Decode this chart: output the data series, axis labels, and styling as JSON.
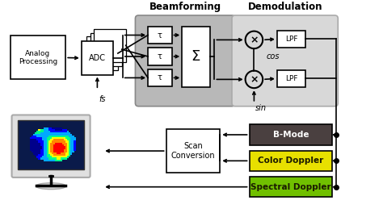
{
  "bg_color": "#ffffff",
  "beamforming_label": "Beamforming",
  "demodulation_label": "Demodulation",
  "analog_label": "Analog\nProcessing",
  "adc_label": "ADC",
  "sigma_label": "Σ",
  "tau_label": "τ",
  "lpf_label": "LPF",
  "scan_label": "Scan\nConversion",
  "bmode_label": "B-Mode",
  "bmode_color": "#4a4040",
  "color_label": "Color Doppler",
  "color_color": "#e8e000",
  "spectral_label": "Spectral Doppler",
  "spectral_color": "#70c000",
  "fs_label": "fs",
  "cos_label": "cos",
  "sin_label": "sin",
  "mult_symbol": "×"
}
